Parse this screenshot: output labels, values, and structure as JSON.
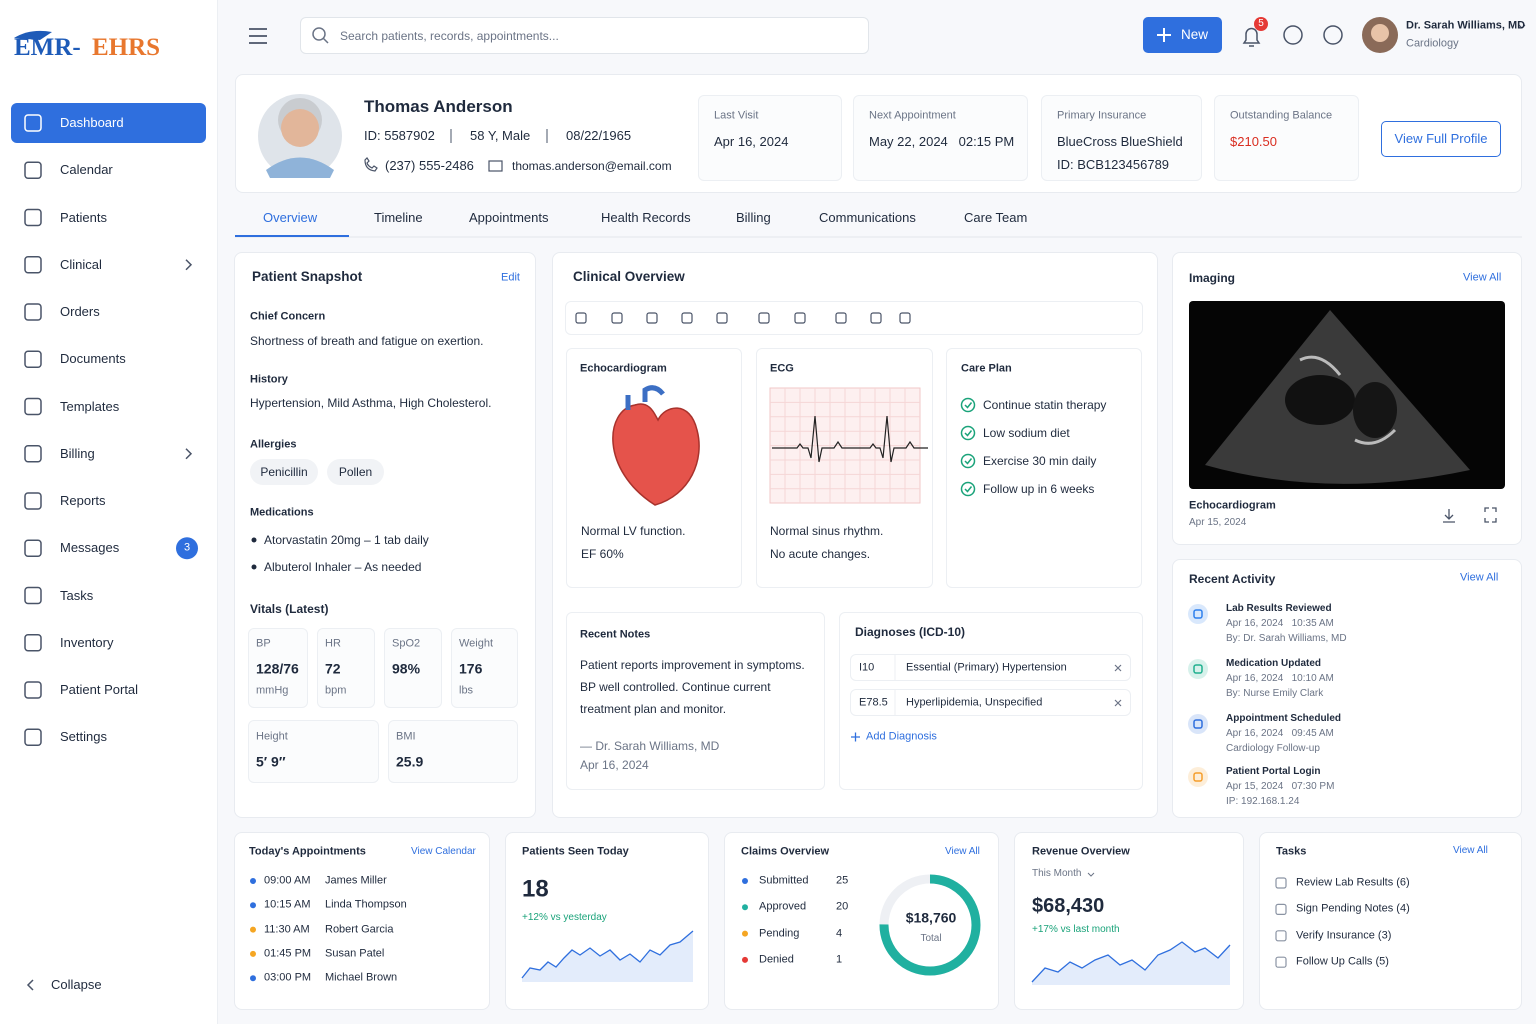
{
  "brand": {
    "left": "EMR-",
    "right": "EHRS"
  },
  "nav": {
    "items": [
      {
        "label": "Dashboard",
        "active": true
      },
      {
        "label": "Calendar"
      },
      {
        "label": "Patients"
      },
      {
        "label": "Clinical",
        "expandable": true
      },
      {
        "label": "Orders"
      },
      {
        "label": "Documents"
      },
      {
        "label": "Templates"
      },
      {
        "label": "Billing",
        "expandable": true
      },
      {
        "label": "Reports"
      },
      {
        "label": "Messages",
        "badge": 3
      },
      {
        "label": "Tasks"
      },
      {
        "label": "Inventory"
      },
      {
        "label": "Patient Portal"
      },
      {
        "label": "Settings"
      }
    ],
    "collapse": "Collapse"
  },
  "topbar": {
    "search_placeholder": "Search patients, records, appointments...",
    "new_button": "New",
    "notification_count": 5,
    "user": {
      "name": "Dr. Sarah Williams, MD",
      "role": "Cardiology"
    }
  },
  "patient": {
    "name": "Thomas Anderson",
    "id": "ID: 5587902",
    "age_sex": "58 Y, Male",
    "dob": "08/22/1965",
    "phone": "(237) 555-2486",
    "email": "thomas.anderson@email.com",
    "view_profile": "View Full Profile",
    "cards": [
      {
        "label": "Last Visit",
        "value": "Apr 16, 2024"
      },
      {
        "label": "Next Appointment",
        "value": "May 22, 2024   02:15 PM"
      },
      {
        "label": "Primary Insurance",
        "value": "BlueCross BlueShield",
        "detail": "ID: BCB123456789"
      },
      {
        "label": "Outstanding Balance",
        "value": "$210.50",
        "color": "#d92d20"
      }
    ]
  },
  "tabs": [
    {
      "label": "Overview",
      "active": true
    },
    {
      "label": "Timeline"
    },
    {
      "label": "Appointments"
    },
    {
      "label": "Health Records"
    },
    {
      "label": "Billing"
    },
    {
      "label": "Communications"
    },
    {
      "label": "Care Team"
    }
  ],
  "snapshot": {
    "title": "Patient Snapshot",
    "edit": "Edit",
    "chief_concern": {
      "label": "Chief Concern",
      "text": "Shortness of breath and fatigue on exertion."
    },
    "history": {
      "label": "History",
      "text": "Hypertension, Mild Asthma, High Cholesterol."
    },
    "allergies": {
      "label": "Allergies",
      "items": [
        "Penicillin",
        "Pollen"
      ]
    },
    "medications": {
      "label": "Medications",
      "items": [
        "Atorvastatin 20mg – 1 tab daily",
        "Albuterol Inhaler – As needed"
      ]
    },
    "vitals": {
      "label": "Vitals (Latest)",
      "items": [
        {
          "label": "BP",
          "value": "128/76",
          "unit": "mmHg"
        },
        {
          "label": "HR",
          "value": "72",
          "unit": "bpm"
        },
        {
          "label": "SpO2",
          "value": "98%"
        },
        {
          "label": "Weight",
          "value": "176",
          "unit": "lbs"
        },
        {
          "label": "Height",
          "value": "5′ 9″"
        },
        {
          "label": "BMI",
          "value": "25.9"
        }
      ]
    }
  },
  "clinical": {
    "title": "Clinical Overview",
    "echo": {
      "title": "Echocardiogram",
      "lines": [
        "Normal LV function.",
        "EF 60%"
      ]
    },
    "ecg": {
      "title": "ECG",
      "lines": [
        "Normal sinus rhythm.",
        "No acute changes."
      ]
    },
    "care_plan": {
      "title": "Care Plan",
      "items": [
        "Continue statin therapy",
        "Low sodium diet",
        "Exercise 30 min daily",
        "Follow up in 6 weeks"
      ]
    },
    "notes": {
      "title": "Recent Notes",
      "lines": [
        "Patient reports improvement in symptoms.",
        "BP well controlled. Continue current",
        "treatment plan and monitor."
      ],
      "author": "— Dr. Sarah Williams, MD",
      "date": "Apr 16, 2024"
    },
    "diagnoses": {
      "title": "Diagnoses (ICD-10)",
      "items": [
        {
          "code": "I10",
          "desc": "Essential (Primary) Hypertension"
        },
        {
          "code": "E78.5",
          "desc": "Hyperlipidemia, Unspecified"
        }
      ],
      "add": "Add Diagnosis"
    }
  },
  "imaging": {
    "title": "Imaging",
    "view_all": "View All",
    "caption": "Echocardiogram",
    "date": "Apr 15, 2024"
  },
  "activity": {
    "title": "Recent Activity",
    "view_all": "View All",
    "items": [
      {
        "title": "Lab Results Reviewed",
        "time": "Apr 16, 2024   10:35 AM",
        "detail": "By: Dr. Sarah Williams, MD",
        "color": "#2f80ed"
      },
      {
        "title": "Medication Updated",
        "time": "Apr 16, 2024   10:10 AM",
        "detail": "By: Nurse Emily Clark",
        "color": "#20b08f"
      },
      {
        "title": "Appointment Scheduled",
        "time": "Apr 16, 2024   09:45 AM",
        "detail": "Cardiology Follow-up",
        "color": "#2f6fde"
      },
      {
        "title": "Patient Portal Login",
        "time": "Apr 15, 2024   07:30 PM",
        "detail": "IP: 192.168.1.24",
        "color": "#f59e2c"
      }
    ]
  },
  "appointments": {
    "title": "Today's Appointments",
    "link": "View Calendar",
    "items": [
      {
        "time": "09:00 AM",
        "name": "James Miller",
        "color": "#2f6fde"
      },
      {
        "time": "10:15 AM",
        "name": "Linda Thompson",
        "color": "#2f6fde"
      },
      {
        "time": "11:30 AM",
        "name": "Robert Garcia",
        "color": "#f5a623"
      },
      {
        "time": "01:45 PM",
        "name": "Susan Patel",
        "color": "#f5a623"
      },
      {
        "time": "03:00 PM",
        "name": "Michael Brown",
        "color": "#2f6fde"
      }
    ]
  },
  "patients_seen": {
    "title": "Patients Seen Today",
    "value": 18,
    "change": "+12% vs yesterday"
  },
  "claims": {
    "title": "Claims Overview",
    "link": "View All",
    "items": [
      {
        "label": "Submitted",
        "value": 25,
        "color": "#2f6fde"
      },
      {
        "label": "Approved",
        "value": 20,
        "color": "#20b0a0"
      },
      {
        "label": "Pending",
        "value": 4,
        "color": "#f5a623"
      },
      {
        "label": "Denied",
        "value": 1,
        "color": "#e53935"
      }
    ],
    "total": "$18,760",
    "total_label": "Total"
  },
  "revenue": {
    "title": "Revenue Overview",
    "period": "This Month",
    "value": "$68,430",
    "change": "+17% vs last month"
  },
  "tasks": {
    "title": "Tasks",
    "link": "View All",
    "items": [
      "Review Lab Results (6)",
      "Sign Pending Notes (4)",
      "Verify Insurance (3)",
      "Follow Up Calls (5)"
    ]
  }
}
